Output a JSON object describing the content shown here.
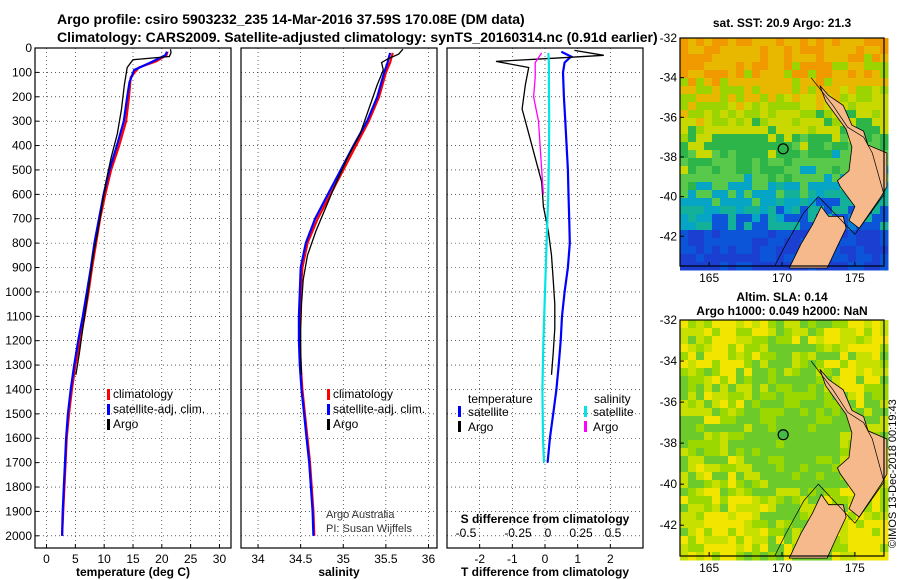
{
  "header": {
    "line1": "Argo profile: csiro 5903232_235 14-Mar-2016 37.59S 170.08E (DM data)",
    "line2": "Climatology: CARS2009. Satellite-adjusted climatology: synTS_20160314.nc (0.91d earlier)"
  },
  "colors": {
    "climatology": "#ff0000",
    "satellite": "#0000ff",
    "argo": "#000000",
    "sat_salinity": "#00e5e5",
    "argo_salinity": "#ff00ff",
    "land": "#f5b98c"
  },
  "chart_data": [
    {
      "id": "temperature",
      "type": "line",
      "xlabel": "temperature (deg C)",
      "ylabel": "",
      "xlim": [
        -2,
        32
      ],
      "ylim": [
        2050,
        0
      ],
      "xticks": [
        0,
        5,
        10,
        15,
        20,
        25,
        30
      ],
      "yticks": [
        0,
        100,
        200,
        300,
        400,
        500,
        600,
        700,
        800,
        900,
        1000,
        1100,
        1200,
        1300,
        1400,
        1500,
        1600,
        1700,
        1800,
        1900,
        2000
      ],
      "legend": [
        "climatology",
        "satellite-adj. clim.",
        "Argo"
      ],
      "series": [
        {
          "name": "climatology",
          "color": "#ff0000",
          "points": [
            [
              21.0,
              15
            ],
            [
              20.8,
              30
            ],
            [
              19.0,
              55
            ],
            [
              16.0,
              80
            ],
            [
              14.6,
              120
            ],
            [
              14.3,
              200
            ],
            [
              13.8,
              300
            ],
            [
              12.6,
              400
            ],
            [
              11.2,
              500
            ],
            [
              10.2,
              600
            ],
            [
              9.3,
              700
            ],
            [
              8.6,
              800
            ],
            [
              7.9,
              900
            ],
            [
              7.3,
              1000
            ],
            [
              6.6,
              1100
            ],
            [
              5.8,
              1200
            ],
            [
              5.0,
              1300
            ],
            [
              4.4,
              1400
            ],
            [
              3.9,
              1500
            ],
            [
              3.5,
              1600
            ],
            [
              3.3,
              1700
            ],
            [
              3.1,
              1800
            ],
            [
              2.9,
              1900
            ],
            [
              2.7,
              2000
            ]
          ]
        },
        {
          "name": "satellite-adj. clim.",
          "color": "#0000ff",
          "points": [
            [
              20.9,
              15
            ],
            [
              20.6,
              30
            ],
            [
              18.0,
              60
            ],
            [
              15.2,
              90
            ],
            [
              14.4,
              140
            ],
            [
              14.0,
              200
            ],
            [
              13.4,
              300
            ],
            [
              12.2,
              400
            ],
            [
              10.9,
              500
            ],
            [
              9.9,
              600
            ],
            [
              9.1,
              700
            ],
            [
              8.3,
              800
            ],
            [
              7.7,
              900
            ],
            [
              7.0,
              1000
            ],
            [
              6.3,
              1100
            ],
            [
              5.5,
              1200
            ],
            [
              4.8,
              1300
            ],
            [
              4.2,
              1400
            ],
            [
              3.7,
              1500
            ],
            [
              3.4,
              1600
            ],
            [
              3.2,
              1700
            ],
            [
              3.0,
              1800
            ],
            [
              2.8,
              1900
            ],
            [
              2.7,
              2000
            ]
          ]
        },
        {
          "name": "Argo",
          "color": "#000000",
          "points": [
            [
              21.5,
              5
            ],
            [
              21.6,
              20
            ],
            [
              21.3,
              35
            ],
            [
              15.0,
              48
            ],
            [
              14.0,
              80
            ],
            [
              13.5,
              150
            ],
            [
              13.0,
              250
            ],
            [
              12.3,
              350
            ],
            [
              11.2,
              450
            ],
            [
              10.3,
              550
            ],
            [
              9.6,
              650
            ],
            [
              8.9,
              750
            ],
            [
              8.1,
              850
            ],
            [
              7.5,
              950
            ],
            [
              6.9,
              1050
            ],
            [
              6.3,
              1150
            ],
            [
              5.7,
              1250
            ],
            [
              5.1,
              1340
            ]
          ]
        }
      ]
    },
    {
      "id": "salinity",
      "type": "line",
      "xlabel": "salinity",
      "xlim": [
        33.8,
        36.1
      ],
      "ylim": [
        2050,
        0
      ],
      "xticks": [
        34,
        34.5,
        35,
        35.5,
        36
      ],
      "legend": [
        "climatology",
        "satellite-adj. clim.",
        "Argo"
      ],
      "credit": [
        "Argo Australia",
        "PI: Susan Wijffels"
      ],
      "series": [
        {
          "name": "climatology",
          "color": "#ff0000",
          "points": [
            [
              35.58,
              20
            ],
            [
              35.55,
              60
            ],
            [
              35.5,
              100
            ],
            [
              35.42,
              200
            ],
            [
              35.3,
              300
            ],
            [
              35.15,
              400
            ],
            [
              35.0,
              500
            ],
            [
              34.85,
              600
            ],
            [
              34.7,
              700
            ],
            [
              34.58,
              800
            ],
            [
              34.52,
              900
            ],
            [
              34.5,
              1000
            ],
            [
              34.49,
              1100
            ],
            [
              34.49,
              1200
            ],
            [
              34.5,
              1300
            ],
            [
              34.52,
              1400
            ],
            [
              34.55,
              1500
            ],
            [
              34.58,
              1600
            ],
            [
              34.61,
              1700
            ],
            [
              34.63,
              1800
            ],
            [
              34.65,
              1900
            ],
            [
              34.66,
              2000
            ]
          ]
        },
        {
          "name": "satellite-adj. clim.",
          "color": "#0000ff",
          "points": [
            [
              35.55,
              20
            ],
            [
              35.52,
              60
            ],
            [
              35.48,
              100
            ],
            [
              35.4,
              200
            ],
            [
              35.28,
              300
            ],
            [
              35.12,
              400
            ],
            [
              34.97,
              500
            ],
            [
              34.82,
              600
            ],
            [
              34.67,
              700
            ],
            [
              34.56,
              800
            ],
            [
              34.5,
              900
            ],
            [
              34.49,
              1000
            ],
            [
              34.48,
              1100
            ],
            [
              34.48,
              1200
            ],
            [
              34.49,
              1300
            ],
            [
              34.51,
              1400
            ],
            [
              34.54,
              1500
            ],
            [
              34.57,
              1600
            ],
            [
              34.6,
              1700
            ],
            [
              34.62,
              1800
            ],
            [
              34.64,
              1900
            ],
            [
              34.65,
              2000
            ]
          ]
        },
        {
          "name": "Argo",
          "color": "#000000",
          "points": [
            [
              35.7,
              5
            ],
            [
              35.65,
              25
            ],
            [
              35.52,
              45
            ],
            [
              35.45,
              60
            ],
            [
              35.47,
              90
            ],
            [
              35.4,
              150
            ],
            [
              35.3,
              250
            ],
            [
              35.2,
              350
            ],
            [
              35.05,
              450
            ],
            [
              34.92,
              550
            ],
            [
              34.8,
              650
            ],
            [
              34.68,
              750
            ],
            [
              34.58,
              850
            ],
            [
              34.53,
              950
            ],
            [
              34.51,
              1050
            ],
            [
              34.5,
              1150
            ],
            [
              34.5,
              1250
            ],
            [
              34.51,
              1340
            ]
          ]
        }
      ]
    },
    {
      "id": "difference",
      "type": "line",
      "xlabel": "T difference from climatology",
      "xlabel_top": "S difference from climatology",
      "xlim": [
        -3,
        3
      ],
      "ylim": [
        2050,
        0
      ],
      "xticks": [
        -2,
        -1,
        0,
        1,
        2
      ],
      "xticks_top": [
        "-0.5",
        "-0.25",
        "0",
        "0.25",
        "0.5"
      ],
      "legend_left": [
        "temperature",
        "satellite",
        "Argo"
      ],
      "legend_right": [
        "salinity",
        "satellite",
        "Argo"
      ],
      "series": [
        {
          "name": "satellite",
          "color": "#0000ff",
          "points": [
            [
              0.5,
              15
            ],
            [
              0.8,
              35
            ],
            [
              0.6,
              60
            ],
            [
              0.55,
              100
            ],
            [
              0.58,
              200
            ],
            [
              0.62,
              300
            ],
            [
              0.66,
              400
            ],
            [
              0.7,
              500
            ],
            [
              0.72,
              600
            ],
            [
              0.74,
              700
            ],
            [
              0.76,
              800
            ],
            [
              0.7,
              900
            ],
            [
              0.6,
              1000
            ],
            [
              0.52,
              1100
            ],
            [
              0.48,
              1200
            ],
            [
              0.42,
              1300
            ],
            [
              0.35,
              1400
            ],
            [
              0.25,
              1500
            ],
            [
              0.15,
              1600
            ],
            [
              0.08,
              1700
            ]
          ]
        },
        {
          "name": "Argo",
          "color": "#000000",
          "points": [
            [
              0.9,
              10
            ],
            [
              1.8,
              30
            ],
            [
              0.5,
              40
            ],
            [
              -1.5,
              55
            ],
            [
              -0.5,
              80
            ],
            [
              -0.6,
              150
            ],
            [
              -0.7,
              250
            ],
            [
              -0.5,
              350
            ],
            [
              -0.3,
              450
            ],
            [
              -0.1,
              550
            ],
            [
              -0.05,
              650
            ],
            [
              0.1,
              750
            ],
            [
              0.2,
              850
            ],
            [
              0.25,
              950
            ],
            [
              0.3,
              1050
            ],
            [
              0.3,
              1150
            ],
            [
              0.25,
              1250
            ],
            [
              0.2,
              1340
            ]
          ]
        },
        {
          "name": "satellite",
          "color": "#00e5e5",
          "points": [
            [
              0.1,
              20
            ],
            [
              0.12,
              60
            ],
            [
              0.12,
              150
            ],
            [
              0.13,
              300
            ],
            [
              0.12,
              450
            ],
            [
              0.1,
              600
            ],
            [
              0.05,
              800
            ],
            [
              0.0,
              1000
            ],
            [
              -0.05,
              1200
            ],
            [
              -0.08,
              1400
            ],
            [
              -0.06,
              1600
            ],
            [
              -0.03,
              1700
            ]
          ]
        },
        {
          "name": "Argo",
          "color": "#ff00ff",
          "points": [
            [
              -0.1,
              20
            ],
            [
              -0.3,
              60
            ],
            [
              -0.3,
              120
            ],
            [
              -0.35,
              200
            ],
            [
              -0.2,
              300
            ],
            [
              -0.15,
              400
            ],
            [
              -0.1,
              500
            ],
            [
              -0.05,
              600
            ]
          ]
        }
      ]
    },
    {
      "id": "sst-map",
      "type": "heatmap",
      "title": "sat. SST: 20.9 Argo: 21.3",
      "xticks": [
        165,
        170,
        175
      ],
      "yticks": [
        -32,
        -34,
        -36,
        -38,
        -40,
        -42
      ],
      "xlim": [
        163,
        177
      ],
      "ylim": [
        -43.5,
        -32
      ]
    },
    {
      "id": "sla-map",
      "type": "heatmap",
      "title": "Altim. SLA: 0.14",
      "subtitle": "Argo h1000: 0.049 h2000: NaN",
      "xticks": [
        165,
        170,
        175
      ],
      "yticks": [
        -32,
        -34,
        -36,
        -38,
        -40,
        -42
      ],
      "xlim": [
        163,
        177
      ],
      "ylim": [
        -43.5,
        -32
      ],
      "watermark": "©IMOS 13-Dec-2018 00:19:43"
    }
  ]
}
